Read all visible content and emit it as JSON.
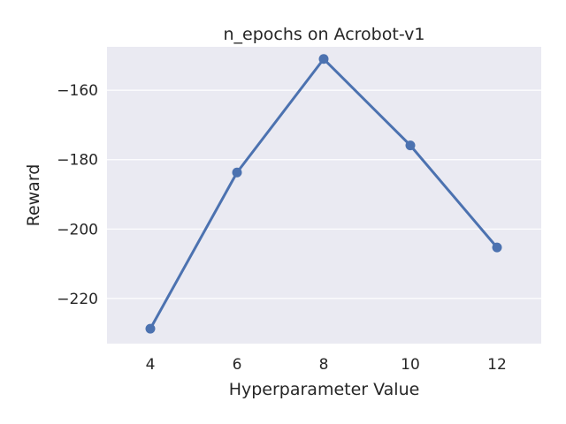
{
  "chart_data": {
    "type": "line",
    "title": "n_epochs on Acrobot-v1",
    "xlabel": "Hyperparameter Value",
    "ylabel": "Reward",
    "categories": [
      "4",
      "6",
      "8",
      "10",
      "12"
    ],
    "series": [
      {
        "values": [
          -228.7,
          -183.7,
          -151.0,
          -175.9,
          -205.3
        ]
      }
    ],
    "yticks": [
      -160,
      -180,
      -200,
      -220
    ],
    "ytick_labels": [
      "−160",
      "−180",
      "−200",
      "−220"
    ],
    "ylim": [
      -233,
      -147.5
    ],
    "grid": true,
    "colors": {
      "line": "#4c72b0",
      "plot_bg": "#eaeaf2",
      "grid": "#ffffff",
      "text": "#262626"
    }
  }
}
